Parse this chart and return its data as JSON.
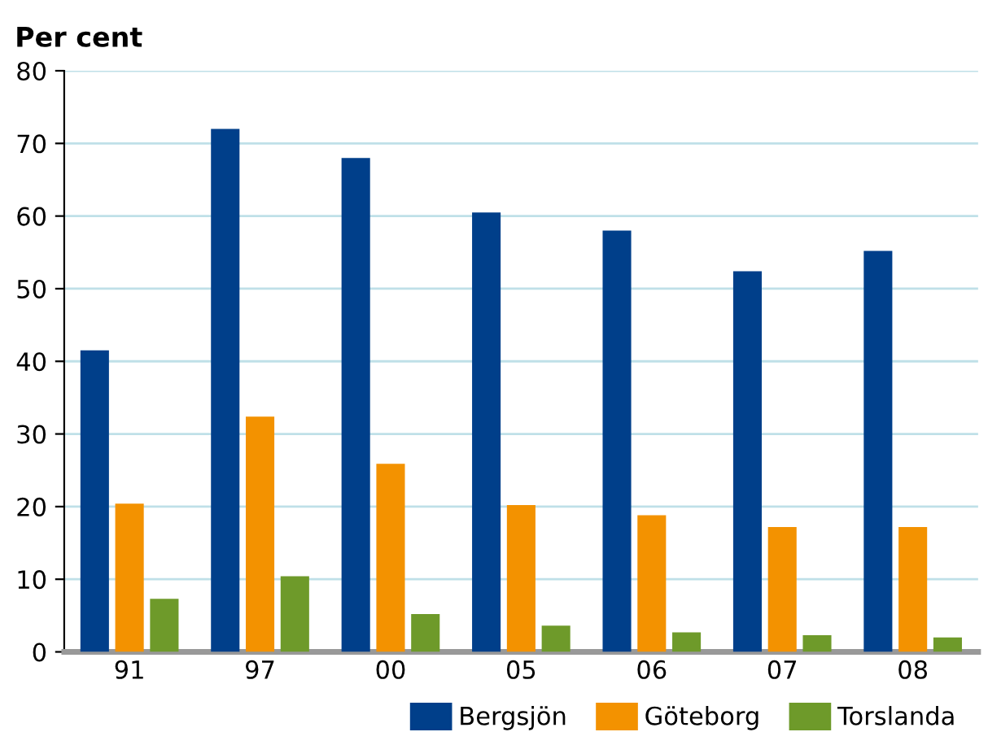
{
  "chart_data": {
    "type": "bar",
    "title": "Per cent",
    "categories": [
      "91",
      "97",
      "00",
      "05",
      "06",
      "07",
      "08"
    ],
    "series": [
      {
        "name": "Bergsjön",
        "color": "#003f8a",
        "values": [
          41.5,
          72,
          68,
          60.5,
          58,
          52.4,
          55.2
        ]
      },
      {
        "name": "Göteborg",
        "color": "#f39200",
        "values": [
          20.4,
          32.4,
          25.9,
          20.2,
          18.8,
          17.2,
          17.2
        ]
      },
      {
        "name": "Torslanda",
        "color": "#6e9a2a",
        "values": [
          7.3,
          10.4,
          5.2,
          3.6,
          2.7,
          2.3,
          2.0
        ]
      }
    ],
    "ylim": [
      0,
      80
    ],
    "yticks": [
      0,
      10,
      20,
      30,
      40,
      50,
      60,
      70,
      80
    ],
    "grid": "y",
    "legend": "bottom right"
  }
}
